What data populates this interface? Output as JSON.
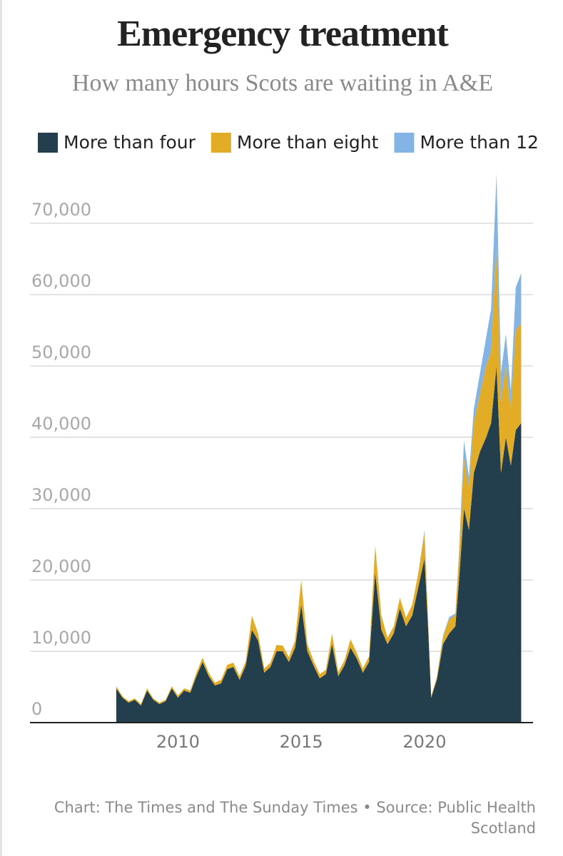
{
  "chart_data": {
    "type": "stacked_area",
    "title": "Emergency treatment",
    "subtitle": "How many hours Scots are waiting in A&E",
    "footer": "Chart: The Times and The Sunday Times • Source: Public Health Scotland",
    "x": [
      2007.5,
      2007.75,
      2008.0,
      2008.25,
      2008.5,
      2008.75,
      2009.0,
      2009.25,
      2009.5,
      2009.75,
      2010.0,
      2010.25,
      2010.5,
      2010.75,
      2011.0,
      2011.25,
      2011.5,
      2011.75,
      2012.0,
      2012.25,
      2012.5,
      2012.75,
      2013.0,
      2013.25,
      2013.5,
      2013.75,
      2014.0,
      2014.25,
      2014.5,
      2014.75,
      2015.0,
      2015.25,
      2015.5,
      2015.75,
      2016.0,
      2016.25,
      2016.5,
      2016.75,
      2017.0,
      2017.25,
      2017.5,
      2017.75,
      2018.0,
      2018.25,
      2018.5,
      2018.75,
      2019.0,
      2019.25,
      2019.5,
      2019.75,
      2020.0,
      2020.15,
      2020.27,
      2020.5,
      2020.75,
      2021.0,
      2021.25,
      2021.4,
      2021.6,
      2021.8,
      2022.0,
      2022.25,
      2022.5,
      2022.7,
      2022.92,
      2023.1,
      2023.3,
      2023.5,
      2023.7,
      2023.92
    ],
    "series": [
      {
        "name": "More than four",
        "color": "#233f4d",
        "values": [
          4800,
          3500,
          2800,
          3200,
          2400,
          4500,
          3200,
          2600,
          3000,
          4800,
          3500,
          4500,
          4200,
          6500,
          8500,
          6500,
          5200,
          5500,
          7500,
          7800,
          6000,
          8000,
          13000,
          11500,
          7000,
          7800,
          10000,
          10000,
          8500,
          10500,
          16500,
          10000,
          8000,
          6200,
          6800,
          11000,
          6500,
          8000,
          10500,
          9000,
          7000,
          8500,
          21000,
          13000,
          11000,
          12500,
          16000,
          13500,
          15000,
          19000,
          23000,
          13000,
          3500,
          6000,
          11000,
          12500,
          13500,
          20000,
          30000,
          27000,
          35000,
          38000,
          40000,
          42000,
          50000,
          35000,
          40000,
          36000,
          41000,
          42000
        ]
      },
      {
        "name": "More than eight",
        "color": "#e2ac27",
        "values": [
          300,
          200,
          200,
          200,
          200,
          300,
          200,
          200,
          200,
          300,
          300,
          300,
          300,
          500,
          600,
          500,
          400,
          500,
          600,
          600,
          500,
          600,
          2000,
          1000,
          600,
          600,
          900,
          800,
          700,
          1000,
          3500,
          1000,
          700,
          600,
          600,
          1500,
          600,
          700,
          1200,
          800,
          600,
          800,
          3800,
          2000,
          900,
          1000,
          1500,
          1200,
          1500,
          2000,
          3500,
          1000,
          200,
          400,
          1000,
          2000,
          1500,
          3500,
          7000,
          6000,
          7000,
          8000,
          10000,
          10000,
          17000,
          10000,
          10000,
          8000,
          14000,
          14000
        ]
      },
      {
        "name": "More than 12",
        "color": "#84b4e3",
        "values": [
          0,
          0,
          0,
          0,
          0,
          0,
          0,
          0,
          0,
          0,
          0,
          0,
          0,
          0,
          0,
          0,
          0,
          0,
          0,
          0,
          0,
          0,
          0,
          0,
          0,
          0,
          0,
          0,
          0,
          0,
          0,
          0,
          0,
          0,
          0,
          0,
          0,
          0,
          0,
          0,
          0,
          0,
          0,
          0,
          0,
          0,
          0,
          0,
          0,
          0,
          500,
          0,
          0,
          0,
          200,
          300,
          300,
          500,
          2500,
          1500,
          2000,
          3000,
          4000,
          6000,
          10000,
          4000,
          4500,
          2500,
          6000,
          7000
        ]
      }
    ],
    "xlim": [
      2004,
      2024.4
    ],
    "xticks": [
      2010,
      2015,
      2020
    ],
    "ylim": [
      0,
      80000
    ],
    "yticks": [
      0,
      {
        "value": 10000,
        "label": "10,000"
      },
      {
        "value": 20000,
        "label": "20,000"
      },
      {
        "value": 30000,
        "label": "30,000"
      },
      {
        "value": 40000,
        "label": "40,000"
      },
      {
        "value": 50000,
        "label": "50,000"
      },
      {
        "value": 60000,
        "label": "60,000"
      },
      {
        "value": 70000,
        "label": "70,000"
      }
    ],
    "grid": true
  }
}
